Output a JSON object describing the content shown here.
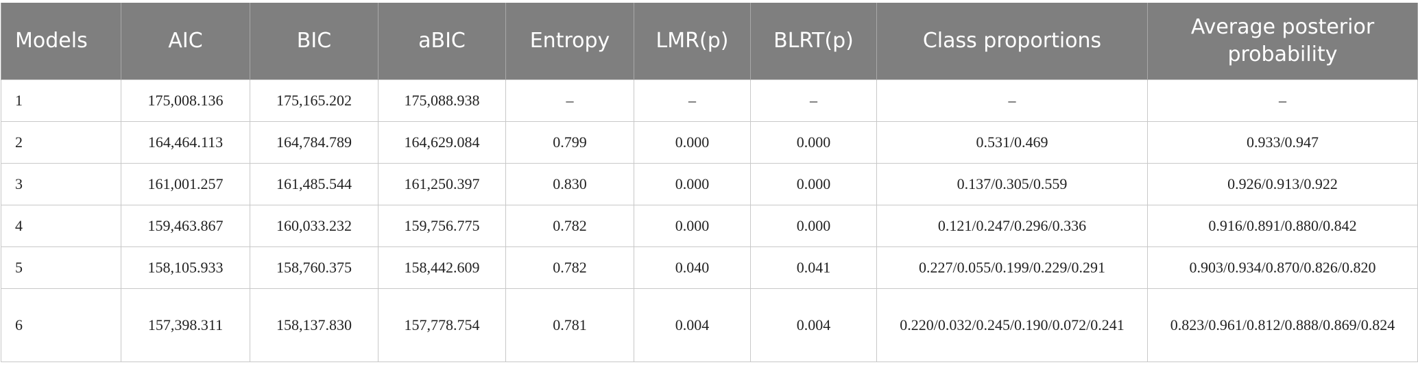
{
  "table": {
    "header": [
      "Models",
      "AIC",
      "BIC",
      "aBIC",
      "Entropy",
      "LMR(p)",
      "BLRT(p)",
      "Class proportions",
      "Average posterior probability"
    ],
    "rows": [
      [
        "1",
        "175,008.136",
        "175,165.202",
        "175,088.938",
        "–",
        "–",
        "–",
        "–",
        "–"
      ],
      [
        "2",
        "164,464.113",
        "164,784.789",
        "164,629.084",
        "0.799",
        "0.000",
        "0.000",
        "0.531/0.469",
        "0.933/0.947"
      ],
      [
        "3",
        "161,001.257",
        "161,485.544",
        "161,250.397",
        "0.830",
        "0.000",
        "0.000",
        "0.137/0.305/0.559",
        "0.926/0.913/0.922"
      ],
      [
        "4",
        "159,463.867",
        "160,033.232",
        "159,756.775",
        "0.782",
        "0.000",
        "0.000",
        "0.121/0.247/0.296/0.336",
        "0.916/0.891/0.880/0.842"
      ],
      [
        "5",
        "158,105.933",
        "158,760.375",
        "158,442.609",
        "0.782",
        "0.040",
        "0.041",
        "0.227/0.055/0.199/0.229/0.291",
        "0.903/0.934/0.870/0.826/0.820"
      ],
      [
        "6",
        "157,398.311",
        "158,137.830",
        "157,778.754",
        "0.781",
        "0.004",
        "0.004",
        "0.220/0.032/0.245/0.190/0.072/0.241",
        "0.823/0.961/0.812/0.888/0.869/0.824"
      ]
    ]
  }
}
